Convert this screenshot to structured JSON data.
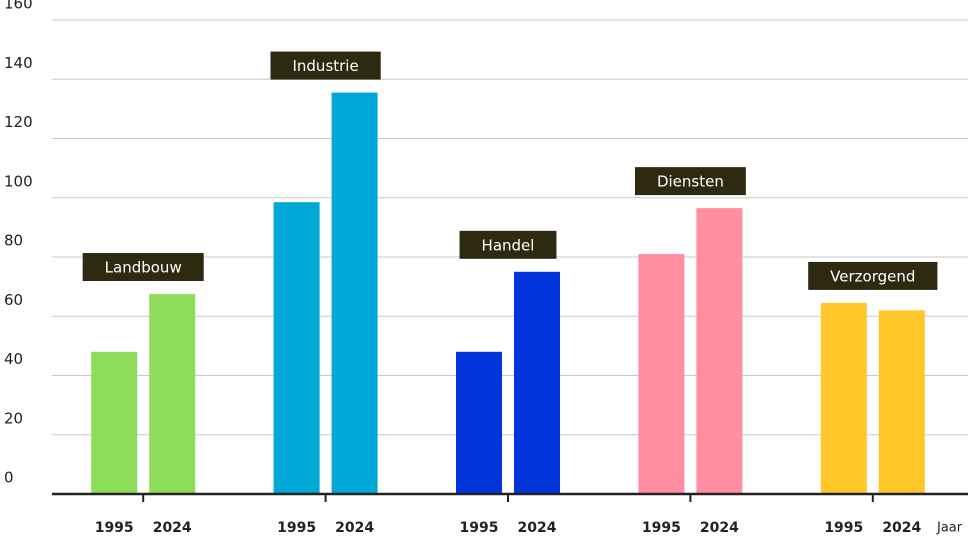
{
  "chart_data": {
    "type": "bar",
    "categories": [
      "Landbouw",
      "Industrie",
      "Handel",
      "Diensten",
      "Verzorgend"
    ],
    "colors": [
      "#8fdc5a",
      "#00a8d8",
      "#0033d9",
      "#ff8fa0",
      "#ffc629"
    ],
    "series": [
      {
        "name": "1995",
        "values": [
          48,
          98.5,
          48,
          81,
          64.5
        ]
      },
      {
        "name": "2024",
        "values": [
          67.5,
          135.5,
          75,
          96.5,
          62
        ]
      }
    ],
    "x_label": "Jaar",
    "ylim": [
      0,
      160
    ],
    "yticks": [
      0,
      20,
      40,
      60,
      80,
      100,
      120,
      140,
      160
    ],
    "grid": true
  }
}
